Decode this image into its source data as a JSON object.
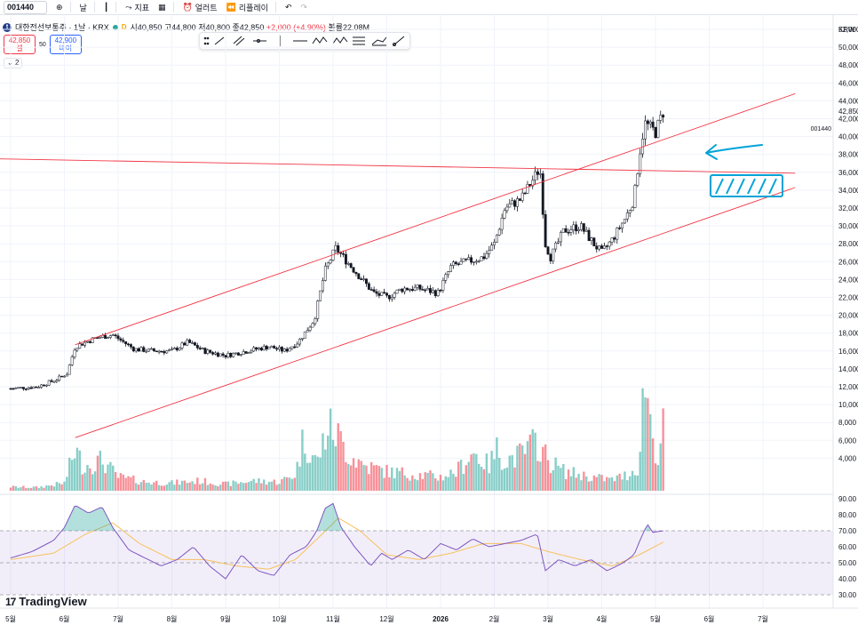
{
  "toolbar": {
    "symbol": "001440",
    "interval": "날",
    "indicators": "지표",
    "alerts": "얼러트",
    "replay": "리플레이"
  },
  "legend": {
    "logo_letter": "t",
    "name": "대한전선보통주 · 1날 · KRX",
    "badge": "D",
    "open": "시40,850",
    "high": "고44,800",
    "low": "저40,800",
    "close": "종42,850",
    "change": "+2,000 (+4.90%)",
    "volume": "볼륨22.08M"
  },
  "bidask": {
    "sell_price": "42,850",
    "sell_label": "셀",
    "spread": "50",
    "buy_price": "42,900",
    "buy_label": "바이"
  },
  "collapse_label": "2",
  "currency": "KRW",
  "symbol_label": "001440",
  "last_price_label": "42,850",
  "brand": "TradingView",
  "colors": {
    "up": "#26a69a",
    "down": "#f23645",
    "trendline": "#f23645",
    "rsi": "#7e57c2",
    "rsi_ma": "#f7c15c",
    "annotation": "#00a3d7"
  },
  "chart_data": [
    {
      "type": "candlestick",
      "title": "",
      "y_axis_labels": [
        "52,000",
        "50,000",
        "48,000",
        "46,000",
        "44,000",
        "42,000",
        "40,000",
        "38,000",
        "36,000",
        "34,000",
        "32,000",
        "30,000",
        "28,000",
        "26,000",
        "24,000",
        "22,000",
        "20,000",
        "18,000",
        "16,000",
        "14,000",
        "12,000",
        "10,000",
        "8,000",
        "6,000",
        "4,000"
      ],
      "x_axis_labels": [
        "5월",
        "6월",
        "7월",
        "8월",
        "9월",
        "10월",
        "11월",
        "12월",
        "2026",
        "2월",
        "3월",
        "4월",
        "5월",
        "6월",
        "7월"
      ],
      "price_points": [
        {
          "m": 0.0,
          "v": 11800
        },
        {
          "m": 0.5,
          "v": 12000
        },
        {
          "m": 0.85,
          "v": 12800
        },
        {
          "m": 1.05,
          "v": 13500
        },
        {
          "m": 1.2,
          "v": 16500
        },
        {
          "m": 1.6,
          "v": 17500
        },
        {
          "m": 1.9,
          "v": 17800
        },
        {
          "m": 2.3,
          "v": 16200
        },
        {
          "m": 2.7,
          "v": 16000
        },
        {
          "m": 3.0,
          "v": 16000
        },
        {
          "m": 3.3,
          "v": 17000
        },
        {
          "m": 3.6,
          "v": 16000
        },
        {
          "m": 4.0,
          "v": 15500
        },
        {
          "m": 4.4,
          "v": 16000
        },
        {
          "m": 4.8,
          "v": 16500
        },
        {
          "m": 5.1,
          "v": 16000
        },
        {
          "m": 5.35,
          "v": 17000
        },
        {
          "m": 5.65,
          "v": 19500
        },
        {
          "m": 5.85,
          "v": 25000
        },
        {
          "m": 6.05,
          "v": 27500
        },
        {
          "m": 6.4,
          "v": 25000
        },
        {
          "m": 6.75,
          "v": 22500
        },
        {
          "m": 7.0,
          "v": 22000
        },
        {
          "m": 7.3,
          "v": 23000
        },
        {
          "m": 7.6,
          "v": 23000
        },
        {
          "m": 7.95,
          "v": 22500
        },
        {
          "m": 8.2,
          "v": 25500
        },
        {
          "m": 8.5,
          "v": 26000
        },
        {
          "m": 8.8,
          "v": 26500
        },
        {
          "m": 9.0,
          "v": 28000
        },
        {
          "m": 9.2,
          "v": 32000
        },
        {
          "m": 9.5,
          "v": 33000
        },
        {
          "m": 9.75,
          "v": 35500
        },
        {
          "m": 9.85,
          "v": 36500
        },
        {
          "m": 9.95,
          "v": 28000
        },
        {
          "m": 10.05,
          "v": 26500
        },
        {
          "m": 10.3,
          "v": 29500
        },
        {
          "m": 10.6,
          "v": 30000
        },
        {
          "m": 10.85,
          "v": 28000
        },
        {
          "m": 11.0,
          "v": 27000
        },
        {
          "m": 11.2,
          "v": 28500
        },
        {
          "m": 11.45,
          "v": 31000
        },
        {
          "m": 11.6,
          "v": 33000
        },
        {
          "m": 11.7,
          "v": 38000
        },
        {
          "m": 11.8,
          "v": 41500
        },
        {
          "m": 12.0,
          "v": 40500
        },
        {
          "m": 12.15,
          "v": 42850
        }
      ],
      "volume_points": [
        {
          "m": 0.0,
          "v": 0.7
        },
        {
          "m": 0.5,
          "v": 0.6
        },
        {
          "m": 1.0,
          "v": 1.4
        },
        {
          "m": 1.2,
          "v": 7.5
        },
        {
          "m": 1.35,
          "v": 4.5
        },
        {
          "m": 1.7,
          "v": 5.5
        },
        {
          "m": 2.0,
          "v": 2.5
        },
        {
          "m": 2.5,
          "v": 1.6
        },
        {
          "m": 3.0,
          "v": 1.4
        },
        {
          "m": 3.5,
          "v": 1.8
        },
        {
          "m": 4.0,
          "v": 1.2
        },
        {
          "m": 4.5,
          "v": 1.8
        },
        {
          "m": 5.0,
          "v": 1.6
        },
        {
          "m": 5.3,
          "v": 3.0
        },
        {
          "m": 5.45,
          "v": 9.5
        },
        {
          "m": 5.7,
          "v": 5.0
        },
        {
          "m": 5.9,
          "v": 11.5
        },
        {
          "m": 6.05,
          "v": 10.5
        },
        {
          "m": 6.3,
          "v": 6.5
        },
        {
          "m": 6.6,
          "v": 4.5
        },
        {
          "m": 7.0,
          "v": 3.5
        },
        {
          "m": 7.5,
          "v": 3.0
        },
        {
          "m": 8.0,
          "v": 2.5
        },
        {
          "m": 8.3,
          "v": 3.5
        },
        {
          "m": 8.6,
          "v": 7.0
        },
        {
          "m": 8.9,
          "v": 4.5
        },
        {
          "m": 9.05,
          "v": 7.5
        },
        {
          "m": 9.2,
          "v": 5.5
        },
        {
          "m": 9.5,
          "v": 6.5
        },
        {
          "m": 9.8,
          "v": 9.0
        },
        {
          "m": 10.0,
          "v": 5.5
        },
        {
          "m": 10.3,
          "v": 3.5
        },
        {
          "m": 10.8,
          "v": 2.5
        },
        {
          "m": 11.2,
          "v": 2.0
        },
        {
          "m": 11.5,
          "v": 3.0
        },
        {
          "m": 11.7,
          "v": 4.5
        },
        {
          "m": 11.8,
          "v": 22.0
        },
        {
          "m": 11.95,
          "v": 9.5
        },
        {
          "m": 12.05,
          "v": 6.0
        },
        {
          "m": 12.15,
          "v": 11.5
        }
      ],
      "trendlines": [
        {
          "from": {
            "m": 1.2,
            "v": 16700
          },
          "to": {
            "m": 14.6,
            "v": 44800
          }
        },
        {
          "from": {
            "m": 1.2,
            "v": 6300
          },
          "to": {
            "m": 14.6,
            "v": 34300
          }
        },
        {
          "from": {
            "m": -0.2,
            "v": 37500
          },
          "to": {
            "m": 14.6,
            "v": 35900
          }
        }
      ]
    },
    {
      "type": "line",
      "title": "",
      "y_axis_labels": [
        "90.00",
        "80.00",
        "70.00",
        "60.00",
        "50.00",
        "40.00",
        "30.00"
      ],
      "ylim": [
        30,
        90
      ],
      "bands": {
        "upper": 70,
        "middle": 50,
        "lower": 30
      },
      "rsi_points": [
        {
          "m": 0.0,
          "v": 53
        },
        {
          "m": 0.4,
          "v": 57
        },
        {
          "m": 0.8,
          "v": 64
        },
        {
          "m": 1.0,
          "v": 72
        },
        {
          "m": 1.2,
          "v": 86
        },
        {
          "m": 1.45,
          "v": 81
        },
        {
          "m": 1.7,
          "v": 85
        },
        {
          "m": 1.9,
          "v": 72
        },
        {
          "m": 2.2,
          "v": 58
        },
        {
          "m": 2.5,
          "v": 53
        },
        {
          "m": 2.8,
          "v": 48
        },
        {
          "m": 3.1,
          "v": 52
        },
        {
          "m": 3.4,
          "v": 60
        },
        {
          "m": 3.7,
          "v": 48
        },
        {
          "m": 4.0,
          "v": 40
        },
        {
          "m": 4.3,
          "v": 55
        },
        {
          "m": 4.6,
          "v": 45
        },
        {
          "m": 4.9,
          "v": 42
        },
        {
          "m": 5.2,
          "v": 55
        },
        {
          "m": 5.5,
          "v": 60
        },
        {
          "m": 5.7,
          "v": 70
        },
        {
          "m": 5.85,
          "v": 84
        },
        {
          "m": 6.0,
          "v": 87
        },
        {
          "m": 6.15,
          "v": 72
        },
        {
          "m": 6.4,
          "v": 60
        },
        {
          "m": 6.7,
          "v": 48
        },
        {
          "m": 6.9,
          "v": 56
        },
        {
          "m": 7.1,
          "v": 52
        },
        {
          "m": 7.4,
          "v": 58
        },
        {
          "m": 7.7,
          "v": 52
        },
        {
          "m": 8.0,
          "v": 62
        },
        {
          "m": 8.3,
          "v": 58
        },
        {
          "m": 8.6,
          "v": 65
        },
        {
          "m": 8.9,
          "v": 60
        },
        {
          "m": 9.2,
          "v": 62
        },
        {
          "m": 9.5,
          "v": 64
        },
        {
          "m": 9.8,
          "v": 68
        },
        {
          "m": 9.95,
          "v": 45
        },
        {
          "m": 10.2,
          "v": 52
        },
        {
          "m": 10.5,
          "v": 48
        },
        {
          "m": 10.8,
          "v": 52
        },
        {
          "m": 11.1,
          "v": 45
        },
        {
          "m": 11.4,
          "v": 50
        },
        {
          "m": 11.6,
          "v": 55
        },
        {
          "m": 11.75,
          "v": 67
        },
        {
          "m": 11.85,
          "v": 74
        },
        {
          "m": 11.95,
          "v": 69
        },
        {
          "m": 12.15,
          "v": 70
        }
      ],
      "rsi_ma_points": [
        {
          "m": 0.0,
          "v": 52
        },
        {
          "m": 0.8,
          "v": 56
        },
        {
          "m": 1.4,
          "v": 68
        },
        {
          "m": 1.9,
          "v": 75
        },
        {
          "m": 2.4,
          "v": 62
        },
        {
          "m": 3.0,
          "v": 52
        },
        {
          "m": 3.6,
          "v": 52
        },
        {
          "m": 4.2,
          "v": 48
        },
        {
          "m": 4.8,
          "v": 46
        },
        {
          "m": 5.3,
          "v": 52
        },
        {
          "m": 5.8,
          "v": 68
        },
        {
          "m": 6.1,
          "v": 78
        },
        {
          "m": 6.5,
          "v": 70
        },
        {
          "m": 7.0,
          "v": 55
        },
        {
          "m": 7.6,
          "v": 52
        },
        {
          "m": 8.2,
          "v": 56
        },
        {
          "m": 8.8,
          "v": 62
        },
        {
          "m": 9.5,
          "v": 62
        },
        {
          "m": 10.0,
          "v": 57
        },
        {
          "m": 10.6,
          "v": 52
        },
        {
          "m": 11.2,
          "v": 48
        },
        {
          "m": 11.7,
          "v": 55
        },
        {
          "m": 12.15,
          "v": 63
        }
      ]
    }
  ]
}
